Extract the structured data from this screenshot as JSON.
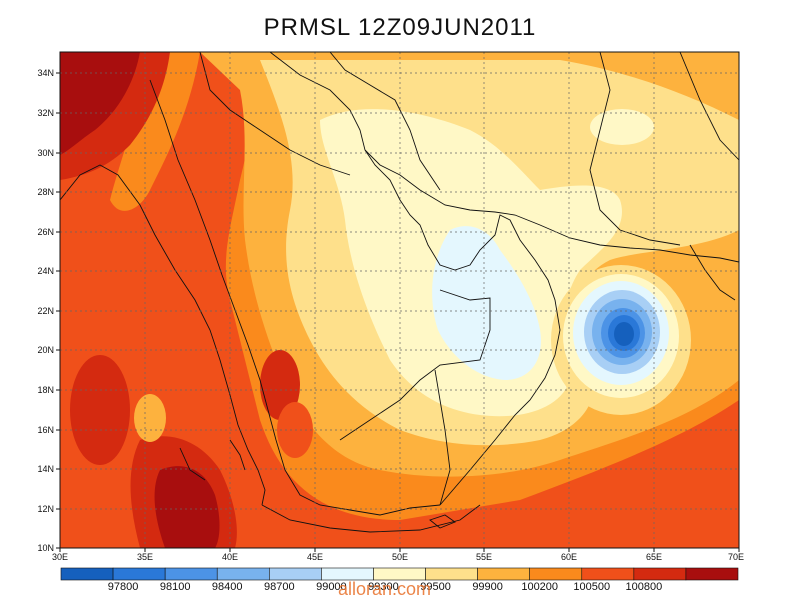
{
  "title": "PRMSL 12Z09JUN2011",
  "lat_labels": [
    "34N",
    "32N",
    "30N",
    "28N",
    "26N",
    "24N",
    "22N",
    "20N",
    "18N",
    "16N",
    "14N",
    "12N",
    "10N"
  ],
  "lon_labels": [
    "30E",
    "35E",
    "40E",
    "45E",
    "50E",
    "55E",
    "60E",
    "65E",
    "70E"
  ],
  "colorbar": {
    "labels": [
      "97800",
      "98100",
      "98400",
      "98700",
      "99000",
      "99300",
      "99500",
      "99900",
      "100200",
      "100500",
      "100800"
    ],
    "colors": [
      "#1560bd",
      "#2a78d8",
      "#4c93e6",
      "#78b2ee",
      "#a8cff5",
      "#e4f7fe",
      "#fff8c6",
      "#fee08b",
      "#fdb23e",
      "#fa8a1c",
      "#f0501a",
      "#d42a10",
      "#a80e0e"
    ]
  },
  "watermark": "alloran.com"
}
